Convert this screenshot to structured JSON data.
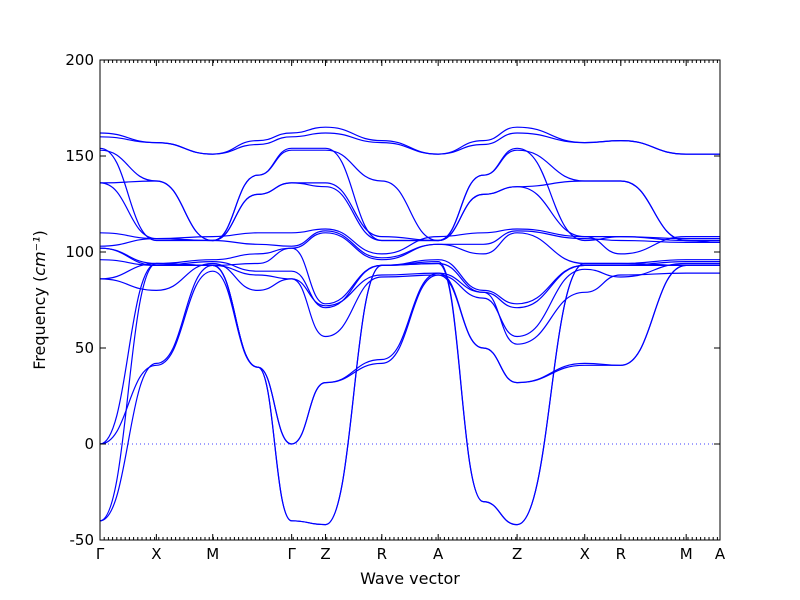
{
  "chart_data": {
    "type": "line",
    "xlabel": "Wave vector",
    "ylabel": "Frequency",
    "ylabel_unit": "cm⁻¹",
    "ylim": [
      -50,
      200
    ],
    "y_ticks": [
      -50,
      0,
      50,
      100,
      150,
      200
    ],
    "x_ticks": [
      {
        "label": "Γ",
        "x": 0
      },
      {
        "label": "X",
        "x": 0.5
      },
      {
        "label": "M",
        "x": 1.0
      },
      {
        "label": "Γ",
        "x": 1.7
      },
      {
        "label": "Z",
        "x": 2.0
      },
      {
        "label": "R",
        "x": 2.5
      },
      {
        "label": "A",
        "x": 3.0
      },
      {
        "label": "Z",
        "x": 3.7
      },
      {
        "label": "X",
        "x": 4.3
      },
      {
        "label": "R",
        "x": 4.62
      },
      {
        "label": "M",
        "x": 5.2
      },
      {
        "label": "A",
        "x": 5.5
      }
    ],
    "xlim": [
      0,
      5.5
    ],
    "zero_line": true,
    "series": [
      {
        "values": [
          [
            0,
            162
          ],
          [
            0.5,
            157
          ],
          [
            1,
            151
          ],
          [
            1.4,
            158
          ],
          [
            1.7,
            162
          ],
          [
            2,
            165
          ],
          [
            2.5,
            158
          ],
          [
            3,
            151
          ],
          [
            3.4,
            158
          ],
          [
            3.7,
            165
          ],
          [
            4.3,
            157
          ],
          [
            4.62,
            158
          ],
          [
            5.2,
            151
          ],
          [
            5.5,
            151
          ]
        ]
      },
      {
        "values": [
          [
            0,
            160
          ],
          [
            0.5,
            157
          ],
          [
            1,
            151
          ],
          [
            1.4,
            156
          ],
          [
            1.7,
            160
          ],
          [
            2,
            162
          ],
          [
            2.5,
            157
          ],
          [
            3,
            151
          ],
          [
            3.4,
            156
          ],
          [
            3.7,
            162
          ],
          [
            4.3,
            157
          ],
          [
            4.62,
            158
          ],
          [
            5.2,
            151
          ],
          [
            5.5,
            151
          ]
        ]
      },
      {
        "values": [
          [
            0,
            154
          ],
          [
            0.5,
            106
          ],
          [
            1,
            106
          ],
          [
            1.4,
            140
          ],
          [
            1.7,
            154
          ],
          [
            2,
            154
          ],
          [
            2.5,
            106
          ],
          [
            3,
            106
          ],
          [
            3.4,
            140
          ],
          [
            3.7,
            154
          ],
          [
            4.3,
            106
          ],
          [
            4.62,
            108
          ],
          [
            5.2,
            106
          ],
          [
            5.5,
            106
          ]
        ]
      },
      {
        "values": [
          [
            0,
            153
          ],
          [
            0.5,
            137
          ],
          [
            1,
            106
          ],
          [
            1.4,
            140
          ],
          [
            1.7,
            153
          ],
          [
            2,
            153
          ],
          [
            2.5,
            137
          ],
          [
            3,
            106
          ],
          [
            3.4,
            140
          ],
          [
            3.7,
            153
          ],
          [
            4.3,
            137
          ],
          [
            4.62,
            137
          ],
          [
            5.2,
            106
          ],
          [
            5.5,
            105
          ]
        ]
      },
      {
        "values": [
          [
            0,
            136
          ],
          [
            0.5,
            137
          ],
          [
            1,
            106
          ],
          [
            1.4,
            130
          ],
          [
            1.7,
            136
          ],
          [
            2,
            136
          ],
          [
            2.5,
            108
          ],
          [
            3,
            106
          ],
          [
            3.4,
            130
          ],
          [
            3.7,
            134
          ],
          [
            4.3,
            137
          ],
          [
            4.62,
            137
          ],
          [
            5.2,
            106
          ],
          [
            5.5,
            105
          ]
        ]
      },
      {
        "values": [
          [
            0,
            136
          ],
          [
            0.5,
            107
          ],
          [
            1,
            106
          ],
          [
            1.4,
            130
          ],
          [
            1.7,
            136
          ],
          [
            2,
            134
          ],
          [
            2.5,
            106
          ],
          [
            3,
            106
          ],
          [
            3.4,
            130
          ],
          [
            3.7,
            134
          ],
          [
            4.3,
            108
          ],
          [
            4.62,
            108
          ],
          [
            5.2,
            107
          ],
          [
            5.5,
            107
          ]
        ]
      },
      {
        "values": [
          [
            0,
            110
          ],
          [
            0.5,
            107
          ],
          [
            1,
            108
          ],
          [
            1.4,
            110
          ],
          [
            1.7,
            110
          ],
          [
            2,
            112
          ],
          [
            2.5,
            99
          ],
          [
            3,
            108
          ],
          [
            3.4,
            110
          ],
          [
            3.7,
            112
          ],
          [
            4.3,
            108
          ],
          [
            4.62,
            99
          ],
          [
            5.2,
            108
          ],
          [
            5.5,
            108
          ]
        ]
      },
      {
        "values": [
          [
            0,
            103
          ],
          [
            0.5,
            107
          ],
          [
            1,
            106
          ],
          [
            1.4,
            104
          ],
          [
            1.7,
            103
          ],
          [
            2,
            111
          ],
          [
            2.5,
            97
          ],
          [
            3,
            104
          ],
          [
            3.4,
            104
          ],
          [
            3.7,
            111
          ],
          [
            4.3,
            107
          ],
          [
            4.62,
            106
          ],
          [
            5.2,
            105
          ],
          [
            5.5,
            105
          ]
        ]
      },
      {
        "values": [
          [
            0,
            102
          ],
          [
            0.5,
            94
          ],
          [
            1,
            96
          ],
          [
            1.4,
            99
          ],
          [
            1.7,
            102
          ],
          [
            2,
            110
          ],
          [
            2.5,
            96
          ],
          [
            3,
            104
          ],
          [
            3.4,
            99
          ],
          [
            3.7,
            110
          ],
          [
            4.3,
            94
          ],
          [
            4.62,
            94
          ],
          [
            5.2,
            96
          ],
          [
            5.5,
            96
          ]
        ]
      },
      {
        "values": [
          [
            0,
            102
          ],
          [
            0.5,
            93
          ],
          [
            1,
            93
          ],
          [
            1.4,
            94
          ],
          [
            1.7,
            102
          ],
          [
            2,
            73
          ],
          [
            2.5,
            93
          ],
          [
            3,
            96
          ],
          [
            3.4,
            80
          ],
          [
            3.7,
            73
          ],
          [
            4.3,
            93
          ],
          [
            4.62,
            93
          ],
          [
            5.2,
            95
          ],
          [
            5.5,
            95
          ]
        ]
      },
      {
        "values": [
          [
            0,
            96
          ],
          [
            0.5,
            93
          ],
          [
            1,
            95
          ],
          [
            1.4,
            90
          ],
          [
            1.7,
            90
          ],
          [
            2,
            71
          ],
          [
            2.5,
            93
          ],
          [
            3,
            94
          ],
          [
            3.4,
            79
          ],
          [
            3.7,
            71
          ],
          [
            4.3,
            93
          ],
          [
            4.62,
            93
          ],
          [
            5.2,
            93
          ],
          [
            5.5,
            93
          ]
        ]
      },
      {
        "values": [
          [
            0,
            86
          ],
          [
            0.5,
            94
          ],
          [
            1,
            93
          ],
          [
            1.4,
            88
          ],
          [
            1.7,
            86
          ],
          [
            2,
            72
          ],
          [
            2.5,
            88
          ],
          [
            3,
            89
          ],
          [
            3.4,
            79
          ],
          [
            3.7,
            52
          ],
          [
            4.3,
            79
          ],
          [
            4.62,
            88
          ],
          [
            5.2,
            89
          ],
          [
            5.5,
            89
          ]
        ]
      },
      {
        "values": [
          [
            0,
            86
          ],
          [
            0.5,
            80
          ],
          [
            1,
            94
          ],
          [
            1.4,
            80
          ],
          [
            1.7,
            86
          ],
          [
            2,
            56
          ],
          [
            2.5,
            87
          ],
          [
            3,
            88
          ],
          [
            3.4,
            76
          ],
          [
            3.7,
            56
          ],
          [
            4.3,
            91
          ],
          [
            4.62,
            87
          ],
          [
            5.2,
            94
          ],
          [
            5.5,
            94
          ]
        ]
      },
      {
        "values": [
          [
            0,
            0
          ],
          [
            0.5,
            41
          ],
          [
            1,
            90
          ],
          [
            1.4,
            40
          ],
          [
            1.7,
            0
          ],
          [
            2,
            32
          ],
          [
            2.5,
            44
          ],
          [
            3,
            89
          ],
          [
            3.4,
            50
          ],
          [
            3.7,
            32
          ],
          [
            4.3,
            41
          ],
          [
            4.62,
            41
          ],
          [
            5.2,
            93
          ],
          [
            5.5,
            93
          ]
        ]
      },
      {
        "values": [
          [
            0,
            0
          ],
          [
            0.5,
            94
          ],
          [
            1,
            93
          ],
          [
            1.4,
            40
          ],
          [
            1.7,
            0
          ],
          [
            2,
            32
          ],
          [
            2.5,
            42
          ],
          [
            3,
            88
          ],
          [
            3.4,
            50
          ],
          [
            3.7,
            32
          ],
          [
            4.3,
            42
          ],
          [
            4.62,
            41
          ],
          [
            5.2,
            93
          ],
          [
            5.5,
            93
          ]
        ]
      },
      {
        "values": [
          [
            0,
            -40
          ],
          [
            0.5,
            42
          ],
          [
            1,
            93
          ],
          [
            1.4,
            40
          ],
          [
            1.7,
            -40
          ],
          [
            2,
            -42
          ],
          [
            2.5,
            93
          ],
          [
            3,
            94
          ],
          [
            3.4,
            -30
          ],
          [
            3.7,
            -42
          ],
          [
            4.3,
            94
          ],
          [
            4.62,
            94
          ],
          [
            5.2,
            93
          ],
          [
            5.5,
            93
          ]
        ]
      },
      {
        "values": [
          [
            0,
            -40
          ],
          [
            0.5,
            94
          ],
          [
            1,
            93
          ],
          [
            1.4,
            40
          ],
          [
            1.7,
            -40
          ],
          [
            2,
            -42
          ],
          [
            2.5,
            93
          ],
          [
            3,
            95
          ],
          [
            3.4,
            -30
          ],
          [
            3.7,
            -42
          ],
          [
            4.3,
            94
          ],
          [
            4.62,
            94
          ],
          [
            5.2,
            93
          ],
          [
            5.5,
            93
          ]
        ]
      }
    ]
  }
}
